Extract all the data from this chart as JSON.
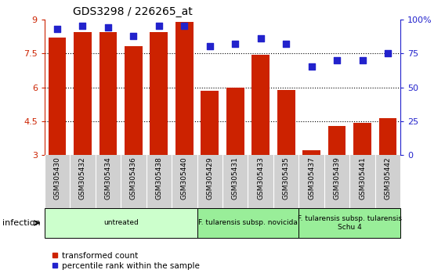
{
  "title": "GDS3298 / 226265_at",
  "samples": [
    "GSM305430",
    "GSM305432",
    "GSM305434",
    "GSM305436",
    "GSM305438",
    "GSM305440",
    "GSM305429",
    "GSM305431",
    "GSM305433",
    "GSM305435",
    "GSM305437",
    "GSM305439",
    "GSM305441",
    "GSM305442"
  ],
  "transformed_count": [
    8.2,
    8.45,
    8.45,
    7.8,
    8.45,
    8.9,
    5.85,
    5.97,
    7.45,
    5.87,
    3.22,
    4.28,
    4.42,
    4.65
  ],
  "percentile_rank": [
    93,
    95,
    94,
    88,
    95,
    95,
    80,
    82,
    86,
    82,
    65,
    70,
    70,
    75
  ],
  "bar_color": "#cc2200",
  "dot_color": "#2222cc",
  "ylim_left": [
    3,
    9
  ],
  "ylim_right": [
    0,
    100
  ],
  "yticks_left": [
    3,
    4.5,
    6,
    7.5,
    9
  ],
  "ytick_labels_left": [
    "3",
    "4.5",
    "6",
    "7.5",
    "9"
  ],
  "yticks_right": [
    0,
    25,
    50,
    75,
    100
  ],
  "ytick_labels_right": [
    "0",
    "25",
    "50",
    "75",
    "100%"
  ],
  "group_positions": [
    {
      "start": 0,
      "end": 5,
      "label": "untreated",
      "color": "#ccffcc"
    },
    {
      "start": 6,
      "end": 9,
      "label": "F. tularensis subsp. novicida",
      "color": "#99ee99"
    },
    {
      "start": 10,
      "end": 13,
      "label": "F. tularensis subsp. tularensis\nSchu 4",
      "color": "#99ee99"
    }
  ],
  "infection_label": "infection",
  "legend_bar_label": "transformed count",
  "legend_dot_label": "percentile rank within the sample",
  "bar_width": 0.7,
  "dot_size": 40,
  "base_value": 3,
  "grid_lines": [
    4.5,
    6.0,
    7.5
  ],
  "bg_color": "#ffffff",
  "label_bg_color": "#d0d0d0",
  "label_divider_color": "#ffffff"
}
